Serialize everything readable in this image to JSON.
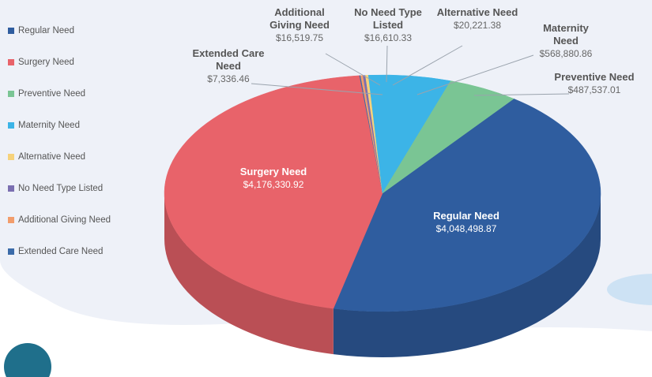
{
  "chart_data": {
    "type": "pie3d",
    "categories": [
      "Regular Need",
      "Surgery Need",
      "Preventive Need",
      "Maternity Need",
      "Alternative Need",
      "No Need Type Listed",
      "Additional Giving Need",
      "Extended Care Need"
    ],
    "values": [
      4048498.87,
      4176330.92,
      487537.01,
      568880.86,
      20221.38,
      16610.33,
      16519.75,
      7336.46
    ],
    "value_labels": [
      "$4,048,498.87",
      "$4,176,330.92",
      "$487,537.01",
      "$568,880.86",
      "$20,221.38",
      "$16,610.33",
      "$16,519.75",
      "$7,336.46"
    ],
    "colors": [
      "#2f5d9f",
      "#e8636a",
      "#7ac594",
      "#3cb4e7",
      "#f6d27b",
      "#7b6fb1",
      "#f29d6c",
      "#3b6ba9"
    ],
    "legend": "left"
  }
}
